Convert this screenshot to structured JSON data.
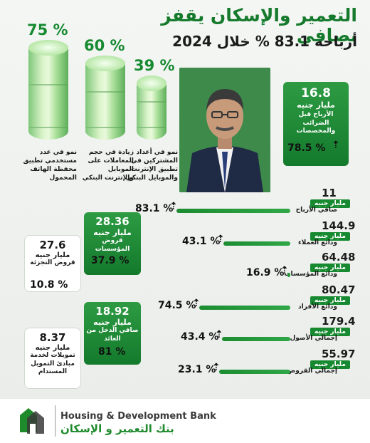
{
  "header": {
    "title": "التعمير والإسكان يقفز بصافي",
    "subtitle": "أرباحه 83.1 % خلال 2024"
  },
  "cylinders": [
    {
      "pct": "75 %",
      "text": "نمو في عدد مستخدمي تطبيق محفظة الهاتف المحمول",
      "level": 0.75
    },
    {
      "pct": "60 %",
      "text": "زيادة في حجم المعاملات على الموبايل والإنترنت البنكي",
      "level": 0.6
    },
    {
      "pct": "39 %",
      "text": "نمو في أعداد المشتركين في تطبيق الإنترنت والموبايل البنكي",
      "level": 0.39
    }
  ],
  "pretax": {
    "value": "16.8",
    "unit": "مليار جنيه",
    "label": "الأرباح قبل الضرائب والمخصصات",
    "pct": "78.5 %"
  },
  "left_cards": [
    {
      "value": "28.36",
      "unit": "مليار جنيه",
      "label": "قروض المؤسسات",
      "pct": "37.9 %"
    },
    {
      "value": "27.6",
      "unit": "مليار جنيه",
      "label": "قروض التجزئة",
      "pct": "10.8 %"
    },
    {
      "value": "18.92",
      "unit": "مليار جنيه",
      "label": "صافي الدخل من العائد",
      "pct": "81 %"
    },
    {
      "value": "8.37",
      "unit": "مليار جنيه",
      "label": "تمويلات لخدمة مبادئ التمويل المستدام"
    }
  ],
  "metrics": [
    {
      "value": "11",
      "unit": "مليار جنيه",
      "label": "صافي الأرباح",
      "pct": "83.1 %"
    },
    {
      "value": "144.9",
      "unit": "مليار جنيه",
      "label": "ودائع العملاء",
      "pct": "43.1 %"
    },
    {
      "value": "64.48",
      "unit": "مليار جنيه",
      "label": "ودائع المؤسسات",
      "pct": "16.9 %"
    },
    {
      "value": "80.47",
      "unit": "مليار جنيه",
      "label": "ودائع الأفراد",
      "pct": "74.5 %"
    },
    {
      "value": "179.4",
      "unit": "مليار جنيه",
      "label": "إجمالي الأصول",
      "pct": "43.4 %"
    },
    {
      "value": "55.97",
      "unit": "مليار جنيه",
      "label": "إجمالي القروض",
      "pct": "23.1 %"
    }
  ],
  "footer": {
    "bank_en": "Housing & Development Bank",
    "bank_ar": "بنك التعمير و الإسكان"
  },
  "colors": {
    "accent": "#178a31",
    "dark": "#1b1b1b"
  }
}
